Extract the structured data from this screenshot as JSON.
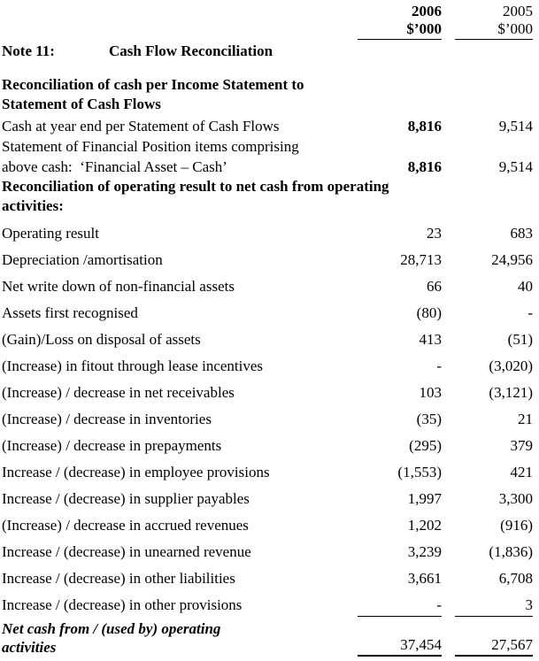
{
  "document": {
    "colors": {
      "text": "#000000",
      "background": "#ffffff",
      "rule": "#000000"
    },
    "columns": {
      "year_2006": "2006",
      "year_2005": "2005",
      "unit_2006": "$’000",
      "unit_2005": "$’000"
    },
    "note": {
      "label": "Note 11:",
      "title": "Cash Flow Reconciliation"
    },
    "section_cash": {
      "heading_lines": [
        "Reconciliation of cash per Income Statement to",
        "Statement of Cash Flows"
      ],
      "rows": [
        {
          "label": "Cash at year end per Statement of Cash Flows",
          "v2006": "8,816",
          "v2005": "9,514",
          "bold2006": true
        },
        {
          "label": "Statement of Financial Position items comprising",
          "v2006": "",
          "v2005": ""
        },
        {
          "label": "above cash:  ‘Financial Asset – Cash’",
          "v2006": "8,816",
          "v2005": "9,514",
          "bold2006": true
        }
      ]
    },
    "section_operating": {
      "heading_lines": [
        "Reconciliation of operating result to net cash from operating",
        "activities:"
      ],
      "rows": [
        {
          "label": "Operating result",
          "v2006": "23",
          "v2005": "683"
        },
        {
          "label": "Depreciation /amortisation",
          "v2006": "28,713",
          "v2005": "24,956"
        },
        {
          "label": "Net write down of non-financial assets",
          "v2006": "66",
          "v2005": "40"
        },
        {
          "label": "Assets first recognised",
          "v2006": "(80)",
          "v2005": "-"
        },
        {
          "label": "(Gain)/Loss on disposal of assets",
          "v2006": "413",
          "v2005": "(51)"
        },
        {
          "label": "(Increase) in fitout through lease incentives",
          "v2006": "-",
          "v2005": "(3,020)"
        },
        {
          "label": "(Increase) / decrease in net receivables",
          "v2006": "103",
          "v2005": "(3,121)"
        },
        {
          "label": "(Increase) / decrease in inventories",
          "v2006": "(35)",
          "v2005": "21"
        },
        {
          "label": "(Increase) / decrease in prepayments",
          "v2006": "(295)",
          "v2005": "379"
        },
        {
          "label": "Increase / (decrease) in employee provisions",
          "v2006": "(1,553)",
          "v2005": "421"
        },
        {
          "label": "Increase / (decrease) in supplier payables",
          "v2006": "1,997",
          "v2005": "3,300"
        },
        {
          "label": "(Increase) / decrease in accrued revenues",
          "v2006": "1,202",
          "v2005": "(916)"
        },
        {
          "label": "Increase / (decrease) in unearned revenue",
          "v2006": "3,239",
          "v2005": "(1,836)"
        },
        {
          "label": "Increase / (decrease) in other liabilities",
          "v2006": "3,661",
          "v2005": "6,708"
        },
        {
          "label": "Increase / (decrease) in other provisions",
          "v2006": "-",
          "v2005": "3",
          "rule": true
        }
      ],
      "total": {
        "label_lines": [
          "Net cash from / (used by) operating",
          "activities"
        ],
        "v2006": "37,454",
        "v2005": "27,567"
      }
    }
  }
}
